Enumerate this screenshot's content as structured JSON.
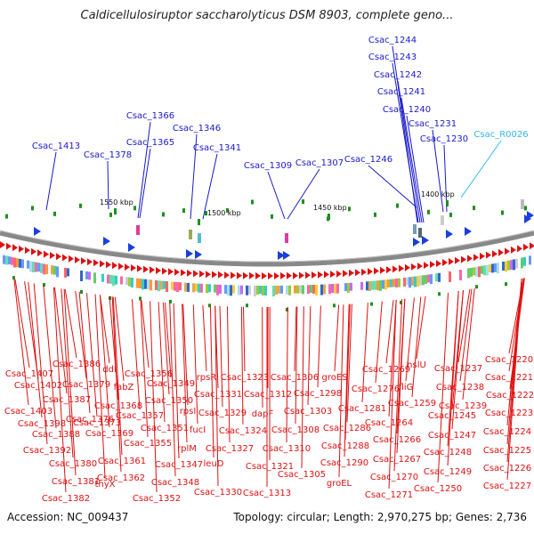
{
  "title": "Caldicellulosiruptor saccharolyticus DSM 8903, complete geno...",
  "footer": {
    "accession": "Accession: NC_009437",
    "stats": "Topology: circular; Length: 2,970,275 bp; Genes: 2,736"
  },
  "scale_ticks": [
    "1550 kbp",
    "1500 kbp",
    "1450 kbp",
    "1400 kbp"
  ],
  "colors": {
    "top_label": "#1a1acc",
    "rna_label": "#33b5e5",
    "bottom_label": "#dd1111",
    "forward_arrow": "#dd1111",
    "backbone": "#888888"
  },
  "top_labels": [
    "Csac_1244",
    "Csac_1243",
    "Csac_1242",
    "Csac_1241",
    "Csac_1240",
    "Csac_1231",
    "Csac_1230",
    "Csac_R0026",
    "Csac_1366",
    "Csac_1346",
    "Csac_1365",
    "Csac_1413",
    "Csac_1341",
    "Csac_1378",
    "Csac_1309",
    "Csac_1307",
    "Csac_1246"
  ],
  "bottom_labels": [
    "Csac_1220",
    "Csac_1237",
    "Csac_1221",
    "Csac_1238",
    "Csac_1222",
    "Csac_1239",
    "Csac_1223",
    "Csac_1245",
    "Csac_1224",
    "Csac_1247",
    "Csac_1225",
    "Csac_1248",
    "Csac_1226",
    "Csac_1249",
    "Csac_1227",
    "Csac_1250",
    "Csac_1269",
    "hslU",
    "Csac_1276",
    "fliG",
    "Csac_1259",
    "Csac_1264",
    "Csac_1266",
    "Csac_1267",
    "Csac_1270",
    "Csac_1271",
    "groES",
    "Csac_1298",
    "Csac_1281",
    "Csac_1286",
    "Csac_1288",
    "Csac_1290",
    "groEL",
    "Csac_1306",
    "Csac_1303",
    "Csac_1308",
    "Csac_1310",
    "Csac_1305",
    "rpsR",
    "Csac_1323",
    "Csac_1331",
    "Csac_1312",
    "Csac_1329",
    "dapF",
    "Csac_1324",
    "Csac_1327",
    "Csac_1321",
    "Csac_1313",
    "Csac_1330",
    "Csac_1356",
    "Csac_1349",
    "Csac_1350",
    "rpsI",
    "fucI",
    "Csac_1357",
    "Csac_1351",
    "rplM",
    "Csac_1355",
    "Csac_1347",
    "leuD",
    "Csac_1348",
    "Csac_1352",
    "Csac_1386",
    "ddl",
    "Csac_1407",
    "Csac_1402",
    "Csac_1379",
    "fabZ",
    "Csac_1387",
    "Csac_1368",
    "Csac_1403",
    "Csac_1376",
    "Csac_1398",
    "Csac_1373",
    "Csac_1388",
    "Csac_1369",
    "Csac_1392",
    "Csac_1361",
    "Csac_1380",
    "Csac_1362",
    "thyX",
    "Csac_1381",
    "Csac_1382"
  ]
}
